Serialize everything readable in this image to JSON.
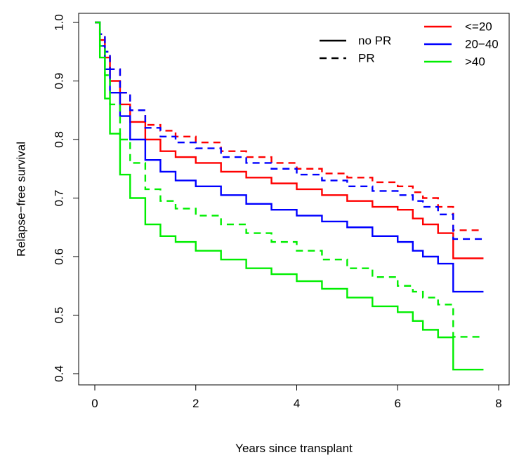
{
  "chart_data": {
    "type": "line",
    "title": "",
    "xlabel": "Years since transplant",
    "ylabel": "Relapse−free survival",
    "xlim": [
      0,
      8
    ],
    "ylim": [
      0.4,
      1.0
    ],
    "xticks": [
      "0",
      "2",
      "4",
      "6",
      "8"
    ],
    "yticks": [
      "0.4",
      "0.5",
      "0.6",
      "0.7",
      "0.8",
      "0.9",
      "1.0"
    ],
    "grid": false,
    "legend_linetype": {
      "placement": "top-right",
      "entries": [
        {
          "label": "no PR",
          "dash": "solid"
        },
        {
          "label": "PR",
          "dash": "dashed"
        }
      ]
    },
    "legend_color": {
      "placement": "top-right",
      "entries": [
        {
          "label": "<=20",
          "color": "#ff0000"
        },
        {
          "label": "20−40",
          "color": "#0000ff"
        },
        {
          "label": ">40",
          "color": "#00ee00"
        }
      ]
    },
    "series": [
      {
        "group": "<=20",
        "pr": "no PR",
        "color": "#ff0000",
        "dash": "solid",
        "x": [
          0,
          0.1,
          0.2,
          0.3,
          0.5,
          0.7,
          1.0,
          1.3,
          1.6,
          2.0,
          2.5,
          3.0,
          3.5,
          4.0,
          4.5,
          5.0,
          5.5,
          6.0,
          6.3,
          6.5,
          6.8,
          7.1,
          7.7
        ],
        "y": [
          1.0,
          0.97,
          0.94,
          0.9,
          0.86,
          0.83,
          0.8,
          0.78,
          0.77,
          0.76,
          0.745,
          0.735,
          0.725,
          0.715,
          0.705,
          0.695,
          0.685,
          0.68,
          0.665,
          0.655,
          0.64,
          0.597,
          0.597
        ]
      },
      {
        "group": "20−40",
        "pr": "no PR",
        "color": "#0000ff",
        "dash": "solid",
        "x": [
          0,
          0.1,
          0.2,
          0.3,
          0.5,
          0.7,
          1.0,
          1.3,
          1.6,
          2.0,
          2.5,
          3.0,
          3.5,
          4.0,
          4.5,
          5.0,
          5.5,
          6.0,
          6.3,
          6.5,
          6.8,
          7.1,
          7.7
        ],
        "y": [
          1.0,
          0.96,
          0.92,
          0.88,
          0.84,
          0.8,
          0.765,
          0.745,
          0.73,
          0.72,
          0.705,
          0.69,
          0.68,
          0.67,
          0.66,
          0.65,
          0.635,
          0.625,
          0.61,
          0.6,
          0.588,
          0.54,
          0.54
        ]
      },
      {
        "group": ">40",
        "pr": "no PR",
        "color": "#00ee00",
        "dash": "solid",
        "x": [
          0,
          0.1,
          0.2,
          0.3,
          0.5,
          0.7,
          1.0,
          1.3,
          1.6,
          2.0,
          2.5,
          3.0,
          3.5,
          4.0,
          4.5,
          5.0,
          5.5,
          6.0,
          6.3,
          6.5,
          6.8,
          7.1,
          7.7
        ],
        "y": [
          1.0,
          0.94,
          0.87,
          0.81,
          0.74,
          0.7,
          0.655,
          0.635,
          0.625,
          0.61,
          0.595,
          0.58,
          0.57,
          0.558,
          0.545,
          0.53,
          0.515,
          0.505,
          0.49,
          0.475,
          0.462,
          0.407,
          0.407
        ]
      },
      {
        "group": "<=20",
        "pr": "PR",
        "color": "#ff0000",
        "dash": "dashed",
        "x": [
          0,
          0.1,
          0.2,
          0.3,
          0.5,
          0.7,
          1.0,
          1.3,
          1.6,
          2.0,
          2.5,
          3.0,
          3.5,
          4.0,
          4.5,
          5.0,
          5.5,
          6.0,
          6.3,
          6.5,
          6.8,
          7.1,
          7.7
        ],
        "y": [
          1.0,
          0.98,
          0.95,
          0.92,
          0.88,
          0.85,
          0.825,
          0.815,
          0.805,
          0.795,
          0.78,
          0.77,
          0.76,
          0.75,
          0.742,
          0.735,
          0.727,
          0.72,
          0.71,
          0.7,
          0.685,
          0.645,
          0.645
        ]
      },
      {
        "group": "20−40",
        "pr": "PR",
        "color": "#0000ff",
        "dash": "dashed",
        "x": [
          0,
          0.1,
          0.2,
          0.3,
          0.5,
          0.7,
          1.0,
          1.3,
          1.6,
          2.0,
          2.5,
          3.0,
          3.5,
          4.0,
          4.5,
          5.0,
          5.5,
          6.0,
          6.3,
          6.5,
          6.8,
          7.1,
          7.7
        ],
        "y": [
          1.0,
          0.98,
          0.95,
          0.92,
          0.88,
          0.85,
          0.82,
          0.805,
          0.795,
          0.785,
          0.77,
          0.76,
          0.75,
          0.74,
          0.73,
          0.72,
          0.712,
          0.705,
          0.695,
          0.685,
          0.672,
          0.63,
          0.63
        ]
      },
      {
        "group": ">40",
        "pr": "PR",
        "color": "#00ee00",
        "dash": "dashed",
        "x": [
          0,
          0.1,
          0.2,
          0.3,
          0.5,
          0.7,
          1.0,
          1.3,
          1.6,
          2.0,
          2.5,
          3.0,
          3.5,
          4.0,
          4.5,
          5.0,
          5.5,
          6.0,
          6.3,
          6.5,
          6.8,
          7.1,
          7.7
        ],
        "y": [
          1.0,
          0.96,
          0.91,
          0.86,
          0.8,
          0.76,
          0.715,
          0.695,
          0.682,
          0.67,
          0.655,
          0.64,
          0.625,
          0.61,
          0.595,
          0.58,
          0.565,
          0.55,
          0.54,
          0.53,
          0.518,
          0.463,
          0.463
        ]
      }
    ]
  }
}
